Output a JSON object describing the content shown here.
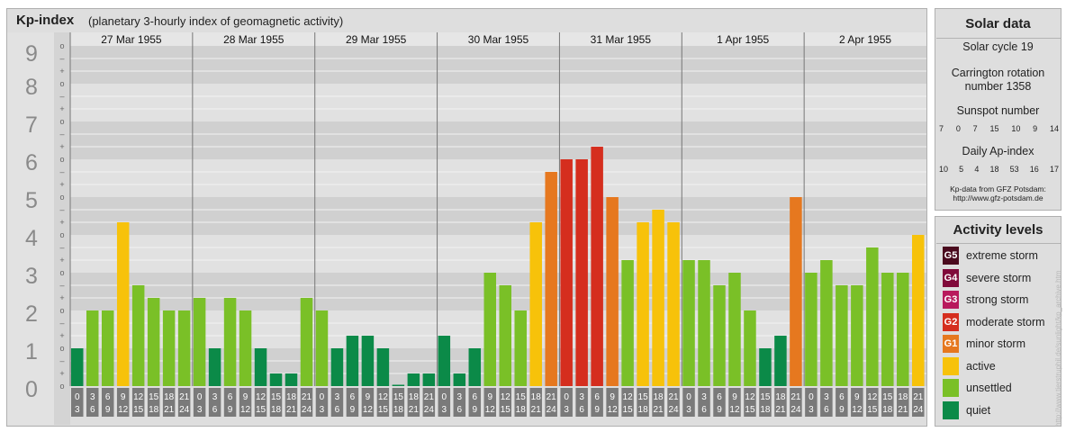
{
  "title": {
    "main": "Kp-index",
    "sub": "(planetary 3-hourly index of geomagnetic activity)"
  },
  "chart_data": {
    "type": "bar",
    "title": "Kp-index",
    "subtitle": "(planetary 3-hourly index of geomagnetic activity)",
    "ylim": [
      0,
      9
    ],
    "y_ticks": [
      "0",
      "1",
      "2",
      "3",
      "4",
      "5",
      "6",
      "7",
      "8",
      "9"
    ],
    "minor_tick_labels": [
      "o",
      "+",
      "–"
    ],
    "days": [
      "27 Mar 1955",
      "28 Mar 1955",
      "29 Mar 1955",
      "30 Mar 1955",
      "31 Mar 1955",
      "1 Apr 1955",
      "2 Apr 1955"
    ],
    "interval_labels_top": [
      "0",
      "3",
      "6",
      "9",
      "12",
      "15",
      "18",
      "21"
    ],
    "interval_labels_bottom": [
      "3",
      "6",
      "9",
      "12",
      "15",
      "18",
      "21",
      "24"
    ],
    "values": [
      1.0,
      2.0,
      2.0,
      4.333,
      2.667,
      2.333,
      2.0,
      2.0,
      2.333,
      1.0,
      2.333,
      2.0,
      1.0,
      0.333,
      0.333,
      2.333,
      2.0,
      1.0,
      1.333,
      1.333,
      1.0,
      0.0,
      0.333,
      0.333,
      1.333,
      0.333,
      1.0,
      3.0,
      2.667,
      2.0,
      4.333,
      5.667,
      6.0,
      6.0,
      6.333,
      5.0,
      3.333,
      4.333,
      4.667,
      4.333,
      3.333,
      3.333,
      2.667,
      3.0,
      2.0,
      1.0,
      1.333,
      5.0,
      3.0,
      3.333,
      2.667,
      2.667,
      3.667,
      3.0,
      3.0,
      4.0
    ]
  },
  "solar": {
    "title": "Solar data",
    "cycle": "Solar cycle 19",
    "carrington_line1": "Carrington rotation",
    "carrington_line2": "number 1358",
    "sunspot_label": "Sunspot number",
    "sunspot_values": [
      "7",
      "0",
      "7",
      "15",
      "10",
      "9",
      "14"
    ],
    "ap_label": "Daily Ap-index",
    "ap_values": [
      "10",
      "5",
      "4",
      "18",
      "53",
      "16",
      "17"
    ],
    "credit_line1": "Kp-data from GFZ Potsdam:",
    "credit_line2": "http://www.gfz-potsdam.de"
  },
  "activity": {
    "title": "Activity levels",
    "levels": [
      {
        "code": "G5",
        "label": "extreme storm",
        "color": "#4a0a1e"
      },
      {
        "code": "G4",
        "label": "severe storm",
        "color": "#800a3a"
      },
      {
        "code": "G3",
        "label": "strong storm",
        "color": "#b8195c"
      },
      {
        "code": "G2",
        "label": "moderate storm",
        "color": "#d52e1e"
      },
      {
        "code": "G1",
        "label": "minor storm",
        "color": "#e6781f"
      },
      {
        "code": "",
        "label": "active",
        "color": "#f7c20a"
      },
      {
        "code": "",
        "label": "unsettled",
        "color": "#7ac027"
      },
      {
        "code": "",
        "label": "quiet",
        "color": "#0b8a48"
      }
    ]
  },
  "side_text": "http://www.tierstruphil.de/sunlight/kp_archive.htm"
}
